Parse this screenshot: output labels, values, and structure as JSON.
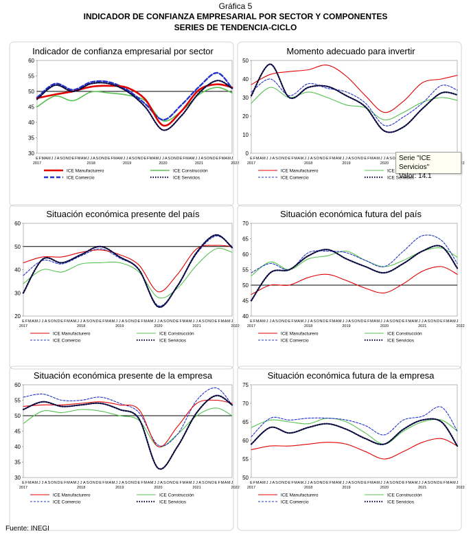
{
  "header": {
    "figure_label": "Gráfica 5",
    "title": "INDICADOR DE CONFIANZA EMPRESARIAL POR SECTOR Y COMPONENTES",
    "subtitle": "SERIES DE TENDENCIA-CICLO"
  },
  "source": "Fuente:   INEGI",
  "tooltip": {
    "line1": "Serie \"ICE Servicios\"",
    "line2": "Valor: 14.1"
  },
  "colors": {
    "manufacturero": "#e00000",
    "construccion": "#55c24f",
    "comercio": "#2233cc",
    "servicios": "#0a0a40",
    "threshold": "#000000"
  },
  "x_axis": {
    "month_labels": "EFMAMJJASONDEFMAMJJASONDEFMAMJJASONDEFMAMJJASONDEFMAMJJASONDEFMAMJ",
    "year_labels": [
      "2017",
      "2018",
      "2019",
      "2020",
      "2021",
      "2022"
    ]
  },
  "chart_data": [
    {
      "type": "line",
      "title": "Indicador de confianza empresarial por sector",
      "ylim": [
        30,
        60
      ],
      "yticks": [
        30,
        35,
        40,
        45,
        50,
        55,
        60
      ],
      "threshold": 50,
      "x": [
        "2017-01",
        "2017-07",
        "2018-01",
        "2018-07",
        "2019-01",
        "2019-07",
        "2020-01",
        "2020-07",
        "2021-01",
        "2021-07",
        "2022-01",
        "2022-06"
      ],
      "series": [
        {
          "name": "ICE Manufacturero",
          "values": [
            47.8,
            49.0,
            50.0,
            51.5,
            51.8,
            51.2,
            47.5,
            39.0,
            43.5,
            50.5,
            52.3,
            51.3
          ]
        },
        {
          "name": "ICE Construcción",
          "values": [
            45.0,
            48.5,
            47.0,
            49.8,
            49.5,
            48.8,
            47.0,
            40.5,
            43.5,
            49.0,
            51.3,
            49.5
          ]
        },
        {
          "name": "ICE Comercio",
          "values": [
            48.0,
            52.5,
            50.5,
            53.0,
            53.0,
            50.5,
            46.0,
            40.8,
            45.5,
            51.5,
            56.0,
            51.0
          ]
        },
        {
          "name": "ICE Servicios",
          "values": [
            47.5,
            52.0,
            50.0,
            52.5,
            52.5,
            50.0,
            45.0,
            37.5,
            42.0,
            49.5,
            53.5,
            51.0
          ]
        }
      ]
    },
    {
      "type": "line",
      "title": "Momento adecuado para invertir",
      "ylim": [
        0,
        50
      ],
      "yticks": [
        0,
        10,
        20,
        30,
        40,
        50
      ],
      "threshold": null,
      "x": [
        "2017-01",
        "2017-07",
        "2018-01",
        "2018-07",
        "2019-01",
        "2019-07",
        "2020-01",
        "2020-07",
        "2021-01",
        "2021-07",
        "2022-01",
        "2022-06"
      ],
      "series": [
        {
          "name": "ICE Manufacturero",
          "values": [
            37.0,
            42.5,
            44.0,
            45.0,
            47.5,
            41.5,
            31.0,
            22.0,
            28.0,
            38.0,
            40.0,
            42.0
          ]
        },
        {
          "name": "ICE Construcción",
          "values": [
            27.0,
            35.5,
            30.0,
            33.0,
            30.0,
            26.0,
            24.5,
            18.0,
            22.0,
            27.5,
            30.0,
            28.5
          ]
        },
        {
          "name": "ICE Comercio",
          "values": [
            33.0,
            40.0,
            31.0,
            37.5,
            35.0,
            33.0,
            27.0,
            15.0,
            19.5,
            27.0,
            36.5,
            34.0
          ]
        },
        {
          "name": "ICE Servicios",
          "values": [
            31.0,
            48.0,
            30.0,
            35.5,
            36.0,
            31.0,
            25.0,
            12.0,
            14.1,
            24.0,
            32.5,
            31.5
          ]
        }
      ]
    },
    {
      "type": "line",
      "title": "Situación económica presente del país",
      "ylim": [
        20,
        60
      ],
      "yticks": [
        20,
        30,
        40,
        50,
        60
      ],
      "threshold": 50,
      "x": [
        "2017-01",
        "2017-07",
        "2018-01",
        "2018-07",
        "2019-01",
        "2019-07",
        "2020-01",
        "2020-07",
        "2021-01",
        "2021-07",
        "2022-01",
        "2022-06"
      ],
      "series": [
        {
          "name": "ICE Manufacturero",
          "values": [
            43.0,
            45.5,
            45.5,
            47.5,
            48.5,
            46.5,
            42.0,
            30.5,
            38.0,
            49.0,
            50.5,
            50.0
          ]
        },
        {
          "name": "ICE Construcción",
          "values": [
            34.0,
            40.0,
            39.0,
            42.5,
            43.0,
            43.0,
            39.0,
            28.0,
            32.0,
            42.0,
            49.0,
            47.5
          ]
        },
        {
          "name": "ICE Comercio",
          "values": [
            37.5,
            44.0,
            42.5,
            46.0,
            49.0,
            45.0,
            40.0,
            24.5,
            33.0,
            47.0,
            54.5,
            50.0
          ]
        },
        {
          "name": "ICE Servicios",
          "values": [
            30.0,
            44.5,
            43.0,
            46.5,
            50.0,
            45.5,
            40.0,
            24.0,
            33.0,
            47.5,
            55.0,
            49.5
          ]
        }
      ]
    },
    {
      "type": "line",
      "title": "Situación económica futura del país",
      "ylim": [
        40,
        70
      ],
      "yticks": [
        40,
        45,
        50,
        55,
        60,
        65,
        70
      ],
      "threshold": 50,
      "x": [
        "2017-01",
        "2017-07",
        "2018-01",
        "2018-07",
        "2019-01",
        "2019-07",
        "2020-01",
        "2020-07",
        "2021-01",
        "2021-07",
        "2022-01",
        "2022-06"
      ],
      "series": [
        {
          "name": "ICE Manufacturero",
          "values": [
            47.0,
            50.0,
            50.0,
            52.5,
            53.5,
            51.5,
            49.0,
            47.5,
            50.5,
            54.5,
            56.0,
            53.5
          ]
        },
        {
          "name": "ICE Construcción",
          "values": [
            53.0,
            57.5,
            55.0,
            58.5,
            59.5,
            61.0,
            58.0,
            56.0,
            58.0,
            61.0,
            62.0,
            59.0
          ]
        },
        {
          "name": "ICE Comercio",
          "values": [
            54.0,
            57.0,
            55.0,
            60.5,
            61.0,
            60.5,
            58.0,
            56.0,
            61.0,
            66.0,
            64.5,
            57.0
          ]
        },
        {
          "name": "ICE Servicios",
          "values": [
            45.0,
            54.0,
            55.0,
            59.5,
            61.5,
            58.5,
            56.0,
            54.0,
            57.0,
            61.0,
            62.5,
            55.5
          ]
        }
      ]
    },
    {
      "type": "line",
      "title": "Situación económica presente de la empresa",
      "ylim": [
        30,
        60
      ],
      "yticks": [
        30,
        35,
        40,
        45,
        50,
        55,
        60
      ],
      "threshold": 50,
      "x": [
        "2017-01",
        "2017-07",
        "2018-01",
        "2018-07",
        "2019-01",
        "2019-07",
        "2020-01",
        "2020-07",
        "2021-01",
        "2021-07",
        "2022-01",
        "2022-06"
      ],
      "series": [
        {
          "name": "ICE Manufacturero",
          "values": [
            53.0,
            53.5,
            53.5,
            54.0,
            54.5,
            53.5,
            52.0,
            40.0,
            46.5,
            54.0,
            55.0,
            54.0
          ]
        },
        {
          "name": "ICE Construcción",
          "values": [
            47.5,
            51.5,
            51.0,
            52.0,
            51.5,
            50.0,
            48.5,
            40.0,
            44.0,
            50.0,
            52.5,
            50.0
          ]
        },
        {
          "name": "ICE Comercio",
          "values": [
            56.0,
            57.0,
            55.0,
            55.0,
            56.0,
            54.0,
            51.0,
            40.5,
            44.0,
            55.0,
            59.0,
            53.5
          ]
        },
        {
          "name": "ICE Servicios",
          "values": [
            52.0,
            54.5,
            53.0,
            53.5,
            54.0,
            52.0,
            49.0,
            33.0,
            40.0,
            51.0,
            56.5,
            53.5
          ]
        }
      ]
    },
    {
      "type": "line",
      "title": "Situación económica futura de la empresa",
      "ylim": [
        50,
        75
      ],
      "yticks": [
        50,
        55,
        60,
        65,
        70,
        75
      ],
      "threshold": null,
      "x": [
        "2017-01",
        "2017-07",
        "2018-01",
        "2018-07",
        "2019-01",
        "2019-07",
        "2020-01",
        "2020-07",
        "2021-01",
        "2021-07",
        "2022-01",
        "2022-06"
      ],
      "series": [
        {
          "name": "ICE Manufacturero",
          "values": [
            57.5,
            58.5,
            58.5,
            59.0,
            59.5,
            59.0,
            57.0,
            55.0,
            57.0,
            59.5,
            60.5,
            58.5
          ]
        },
        {
          "name": "ICE Construcción",
          "values": [
            63.5,
            65.5,
            65.0,
            64.5,
            66.0,
            65.0,
            62.0,
            59.0,
            62.5,
            65.0,
            65.5,
            62.5
          ]
        },
        {
          "name": "ICE Comercio",
          "values": [
            61.0,
            66.0,
            65.5,
            66.0,
            66.0,
            65.5,
            64.0,
            61.5,
            65.5,
            66.5,
            69.0,
            62.5
          ]
        },
        {
          "name": "ICE Servicios",
          "values": [
            59.0,
            63.5,
            62.0,
            63.5,
            64.5,
            63.0,
            60.5,
            59.0,
            63.0,
            65.5,
            65.0,
            58.5
          ]
        }
      ]
    }
  ]
}
